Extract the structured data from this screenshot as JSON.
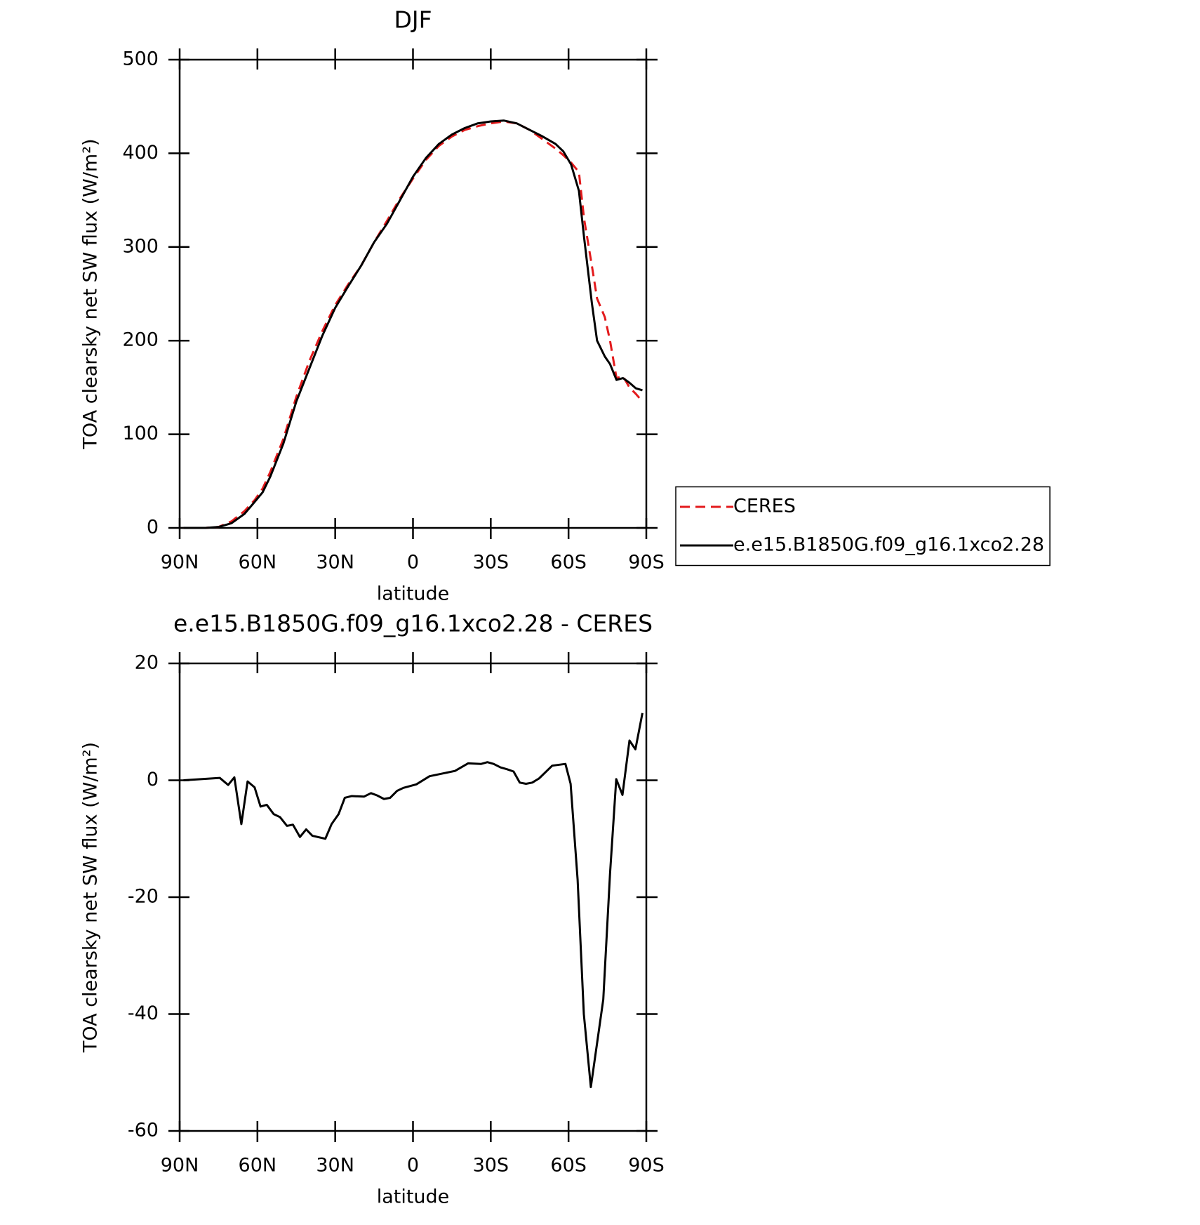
{
  "chart_data": [
    {
      "type": "line",
      "title": "DJF",
      "xlabel": "latitude",
      "ylabel": "TOA clearsky net SW flux (W/m²)",
      "xlim": [
        90,
        -90
      ],
      "xticks": [
        {
          "value": 90,
          "label": "90N"
        },
        {
          "value": 60,
          "label": "60N"
        },
        {
          "value": 30,
          "label": "30N"
        },
        0,
        {
          "value": -30,
          "label": "30S"
        },
        {
          "value": -60,
          "label": "60S"
        },
        {
          "value": -90,
          "label": "90S"
        }
      ],
      "ylim": [
        0,
        500
      ],
      "yticks": [
        0,
        100,
        200,
        300,
        400,
        500
      ],
      "legend": "right",
      "x": [
        88.5,
        85,
        80,
        75,
        70,
        65,
        61,
        58,
        55,
        50,
        45,
        40,
        35,
        30,
        25,
        20,
        15,
        10,
        5,
        0,
        -5,
        -10,
        -15,
        -20,
        -25,
        -30,
        -35,
        -40,
        -45,
        -50,
        -55,
        -58,
        -61,
        -64,
        -66,
        -69,
        -71,
        -74,
        -76,
        -78.5,
        -81,
        -83.5,
        -86,
        -88.5
      ],
      "series": [
        {
          "name": "CERES",
          "color": "#e31a1c",
          "linestyle": "dashed",
          "values": [
            0,
            0,
            0,
            1,
            7,
            18,
            30,
            42,
            60,
            95,
            140,
            178,
            210,
            238,
            260,
            280,
            305,
            328,
            352,
            373,
            393,
            408,
            418,
            425,
            429,
            432,
            434,
            432,
            425,
            415,
            405,
            398,
            390,
            380,
            330,
            280,
            245,
            225,
            200,
            160,
            162,
            150,
            143,
            135
          ]
        },
        {
          "name": "e.e15.B1850G.f09_g16.1xco2.28",
          "color": "#000000",
          "linestyle": "solid",
          "values": [
            0,
            0,
            0,
            1,
            5,
            15,
            28,
            38,
            55,
            90,
            135,
            170,
            205,
            235,
            258,
            280,
            305,
            325,
            350,
            375,
            395,
            410,
            420,
            427,
            432,
            434,
            435,
            432,
            425,
            418,
            410,
            402,
            388,
            360,
            310,
            240,
            200,
            183,
            175,
            158,
            160,
            155,
            149,
            147
          ]
        }
      ]
    },
    {
      "type": "line",
      "title": "e.e15.B1850G.f09_g16.1xco2.28 - CERES",
      "xlabel": "latitude",
      "ylabel": "TOA clearsky net SW flux (W/m²)",
      "xlim": [
        90,
        -90
      ],
      "xticks": [
        {
          "value": 90,
          "label": "90N"
        },
        {
          "value": 60,
          "label": "60N"
        },
        {
          "value": 30,
          "label": "30N"
        },
        0,
        {
          "value": -30,
          "label": "30S"
        },
        {
          "value": -60,
          "label": "60S"
        },
        {
          "value": -90,
          "label": "90S"
        }
      ],
      "ylim": [
        -60,
        20
      ],
      "yticks": [
        -60,
        -40,
        -20,
        0,
        20
      ],
      "x": [
        88.5,
        74.5,
        71.3,
        68.9,
        66.2,
        63.8,
        61.1,
        58.8,
        56.4,
        53.7,
        51.3,
        48.6,
        46.3,
        43.6,
        41.2,
        38.8,
        33.8,
        31.4,
        28.7,
        26.3,
        23.6,
        18.9,
        16.2,
        13.8,
        11.2,
        8.8,
        6.1,
        3.7,
        -1.3,
        -6.4,
        -16.2,
        -21.3,
        -26.3,
        -28.7,
        -31.1,
        -33.8,
        -36.2,
        -38.8,
        -41.2,
        -43.6,
        -46,
        -48.6,
        -53.7,
        -58.8,
        -60.8,
        -63.5,
        -65.9,
        -68.6,
        -71,
        -73.4,
        -76,
        -78.4,
        -80.8,
        -83.5,
        -85.8,
        -88.5
      ],
      "series": [
        {
          "color": "#000000",
          "linestyle": "solid",
          "values": [
            0,
            0.4,
            -0.8,
            0.5,
            -7.5,
            -0.2,
            -1.2,
            -4.5,
            -4.2,
            -5.8,
            -6.3,
            -7.8,
            -7.6,
            -9.7,
            -8.4,
            -9.5,
            -10,
            -7.5,
            -5.8,
            -3,
            -2.7,
            -2.8,
            -2.2,
            -2.6,
            -3.2,
            -3,
            -1.8,
            -1.3,
            -0.7,
            0.7,
            1.6,
            2.9,
            2.8,
            3.1,
            2.8,
            2.2,
            1.9,
            1.5,
            -0.4,
            -0.6,
            -0.4,
            0.3,
            2.5,
            2.8,
            -0.6,
            -17,
            -40,
            -52.5,
            -45,
            -37.5,
            -16,
            0.2,
            -2.5,
            6.8,
            5.3,
            11.5
          ]
        }
      ]
    }
  ]
}
